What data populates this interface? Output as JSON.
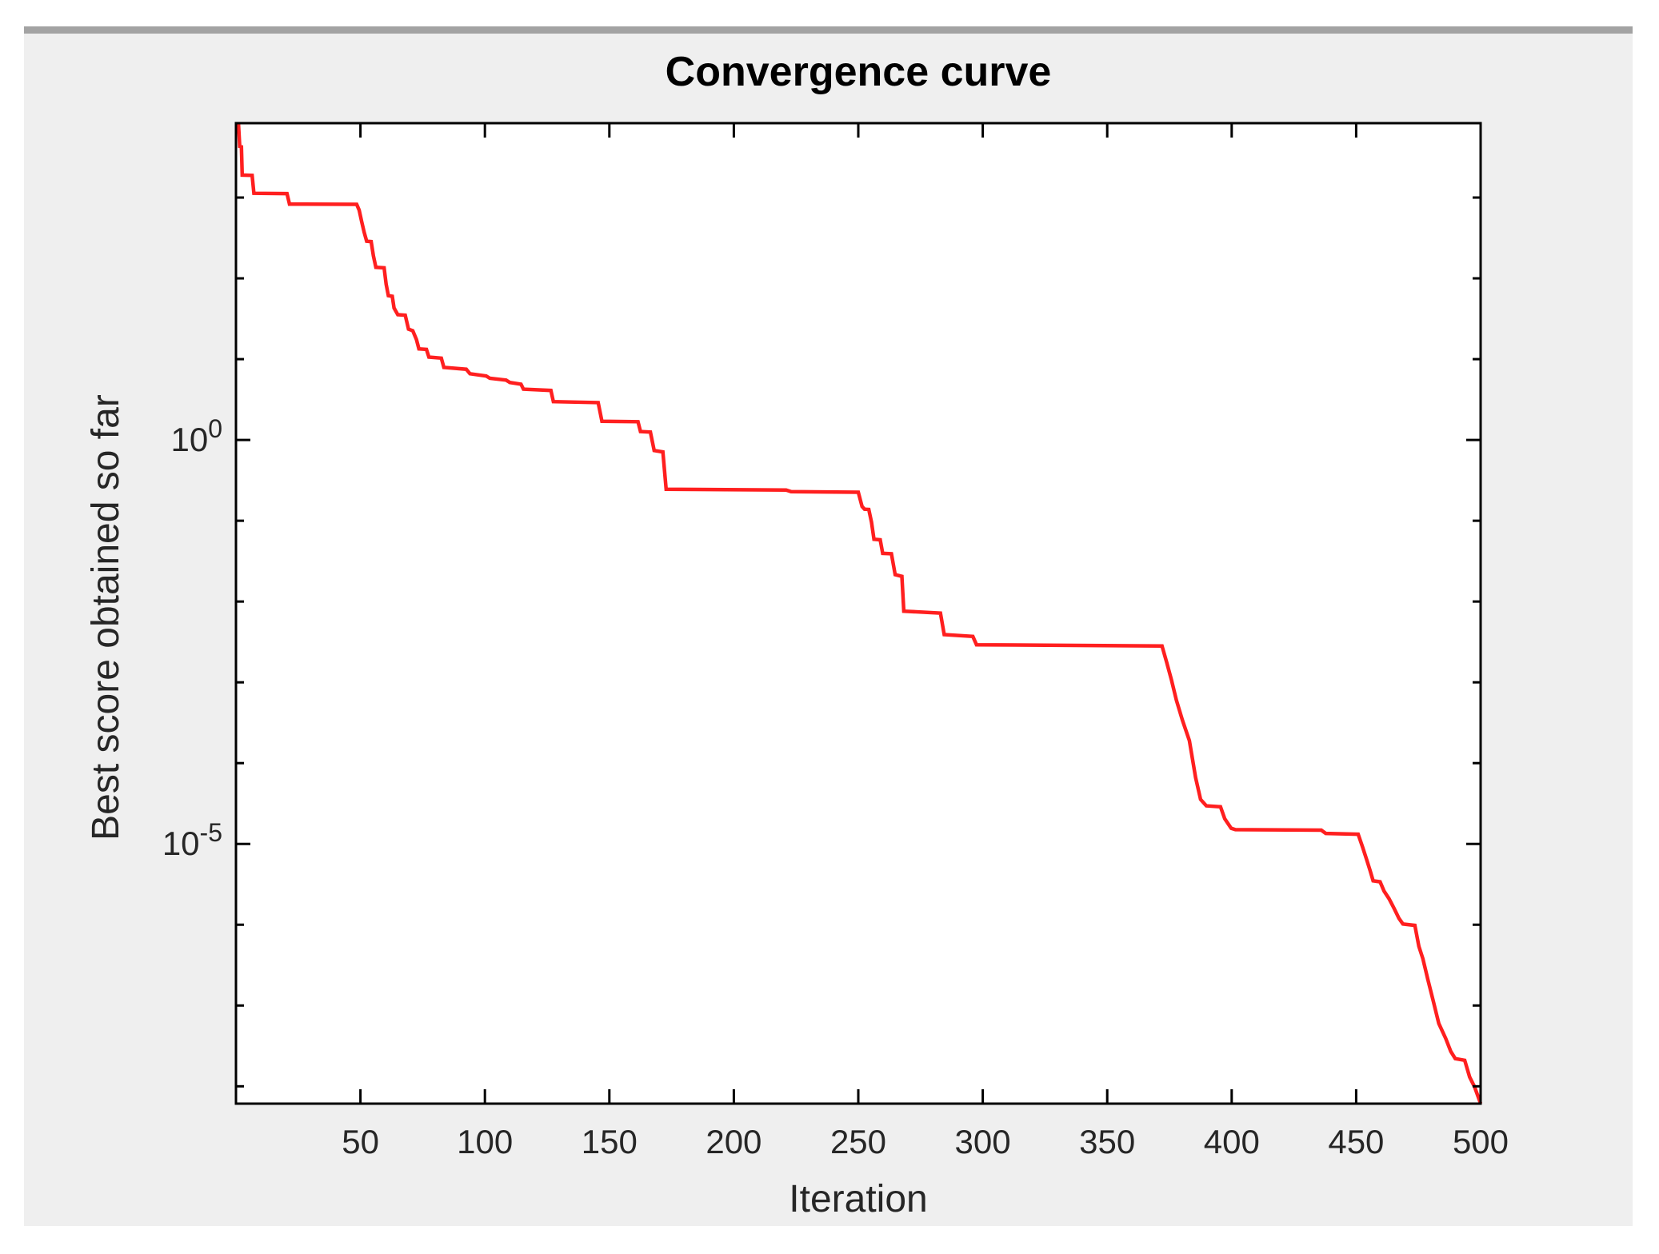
{
  "figure": {
    "background_color": "#efefef",
    "top_strip_color": "#a3a3a3",
    "plot_background": "#ffffff",
    "axis_color": "#000000",
    "tick_text_color": "#262626",
    "title_color": "#000000"
  },
  "chart_data": {
    "type": "line",
    "title": "Convergence curve",
    "xlabel": "Iteration",
    "ylabel": "Best score obtained so far",
    "xlim": [
      0,
      500
    ],
    "ylim": [
      6.1e-09,
      8333
    ],
    "yscale": "log",
    "xscale": "linear",
    "grid": false,
    "legend": null,
    "xticks": [
      50,
      100,
      150,
      200,
      250,
      300,
      350,
      400,
      450,
      500
    ],
    "yticks_labeled": [
      {
        "exp": 0,
        "label": "0"
      },
      {
        "exp": -5,
        "label": "-5"
      }
    ],
    "y_decade_ticks": [
      3,
      2,
      1,
      0,
      -1,
      -2,
      -3,
      -4,
      -5,
      -6,
      -7,
      -8
    ],
    "series": [
      {
        "name": "best-score",
        "color": "#ff1f1f",
        "points": [
          [
            1,
            8300
          ],
          [
            1.5,
            4300
          ],
          [
            2.2,
            4250
          ],
          [
            2.5,
            1900
          ],
          [
            6.5,
            1880
          ],
          [
            7.2,
            1130
          ],
          [
            20.5,
            1120
          ],
          [
            21.5,
            830
          ],
          [
            48.5,
            825
          ],
          [
            49.5,
            700
          ],
          [
            50.5,
            500
          ],
          [
            51.5,
            370
          ],
          [
            52.5,
            288
          ],
          [
            54.3,
            285
          ],
          [
            55.2,
            190
          ],
          [
            56.2,
            137
          ],
          [
            59.5,
            135
          ],
          [
            60.3,
            85
          ],
          [
            61.2,
            61
          ],
          [
            62.8,
            60
          ],
          [
            63.5,
            43
          ],
          [
            65,
            35.5
          ],
          [
            68,
            35
          ],
          [
            69.3,
            23.5
          ],
          [
            71,
            22.5
          ],
          [
            72.5,
            17.5
          ],
          [
            73.5,
            13.4
          ],
          [
            76.5,
            13.2
          ],
          [
            77.5,
            10.6
          ],
          [
            82.5,
            10.3
          ],
          [
            83.5,
            7.9
          ],
          [
            92.5,
            7.5
          ],
          [
            94,
            6.6
          ],
          [
            100.5,
            6.2
          ],
          [
            102,
            5.8
          ],
          [
            108.5,
            5.5
          ],
          [
            110,
            5.15
          ],
          [
            114.5,
            4.9
          ],
          [
            115.5,
            4.25
          ],
          [
            126.5,
            4.1
          ],
          [
            127.5,
            2.98
          ],
          [
            145.5,
            2.9
          ],
          [
            147,
            1.7
          ],
          [
            161.5,
            1.68
          ],
          [
            162.5,
            1.27
          ],
          [
            166.5,
            1.25
          ],
          [
            168,
            0.74
          ],
          [
            171.5,
            0.71
          ],
          [
            172.8,
            0.245
          ],
          [
            221,
            0.24
          ],
          [
            223,
            0.229
          ],
          [
            250,
            0.225
          ],
          [
            251.5,
            0.15
          ],
          [
            252.5,
            0.139
          ],
          [
            254.2,
            0.138
          ],
          [
            255.3,
            0.096
          ],
          [
            256.3,
            0.059
          ],
          [
            258.8,
            0.058
          ],
          [
            259.8,
            0.0395
          ],
          [
            263.3,
            0.039
          ],
          [
            264.8,
            0.0215
          ],
          [
            267.5,
            0.0205
          ],
          [
            268.3,
            0.0076
          ],
          [
            283,
            0.0072
          ],
          [
            284.5,
            0.0039
          ],
          [
            296,
            0.0037
          ],
          [
            297.5,
            0.00292
          ],
          [
            372,
            0.00282
          ],
          [
            373.8,
            0.0018
          ],
          [
            375.8,
            0.00107
          ],
          [
            377.8,
            0.0006
          ],
          [
            380.2,
            0.00034
          ],
          [
            383,
            0.00019
          ],
          [
            385.5,
            6.6e-05
          ],
          [
            387.5,
            3.55e-05
          ],
          [
            389.8,
            2.96e-05
          ],
          [
            395.5,
            2.88e-05
          ],
          [
            397.2,
            2.05e-05
          ],
          [
            399.8,
            1.56e-05
          ],
          [
            401.5,
            1.5e-05
          ],
          [
            436,
            1.48e-05
          ],
          [
            437.8,
            1.35e-05
          ],
          [
            450.8,
            1.32e-05
          ],
          [
            452.6,
            9.1e-06
          ],
          [
            454.2,
            6.4e-06
          ],
          [
            455.6,
            4.7e-06
          ],
          [
            456.8,
            3.5e-06
          ],
          [
            459.6,
            3.4e-06
          ],
          [
            461.2,
            2.6e-06
          ],
          [
            463.2,
            2.1e-06
          ],
          [
            465.2,
            1.6e-06
          ],
          [
            467.2,
            1.2e-06
          ],
          [
            468.8,
            1.02e-06
          ],
          [
            473.6,
            9.8e-07
          ],
          [
            475.2,
            5.4e-07
          ],
          [
            476.8,
            3.8e-07
          ],
          [
            478.8,
            2.1e-07
          ],
          [
            480.8,
            1.2e-07
          ],
          [
            483.2,
            6e-08
          ],
          [
            486,
            3.9e-08
          ],
          [
            488,
            2.7e-08
          ],
          [
            489.8,
            2.2e-08
          ],
          [
            493.6,
            2.1e-08
          ],
          [
            495.6,
            1.3e-08
          ],
          [
            497.6,
            9.8e-09
          ],
          [
            500,
            6.1e-09
          ]
        ]
      }
    ]
  }
}
